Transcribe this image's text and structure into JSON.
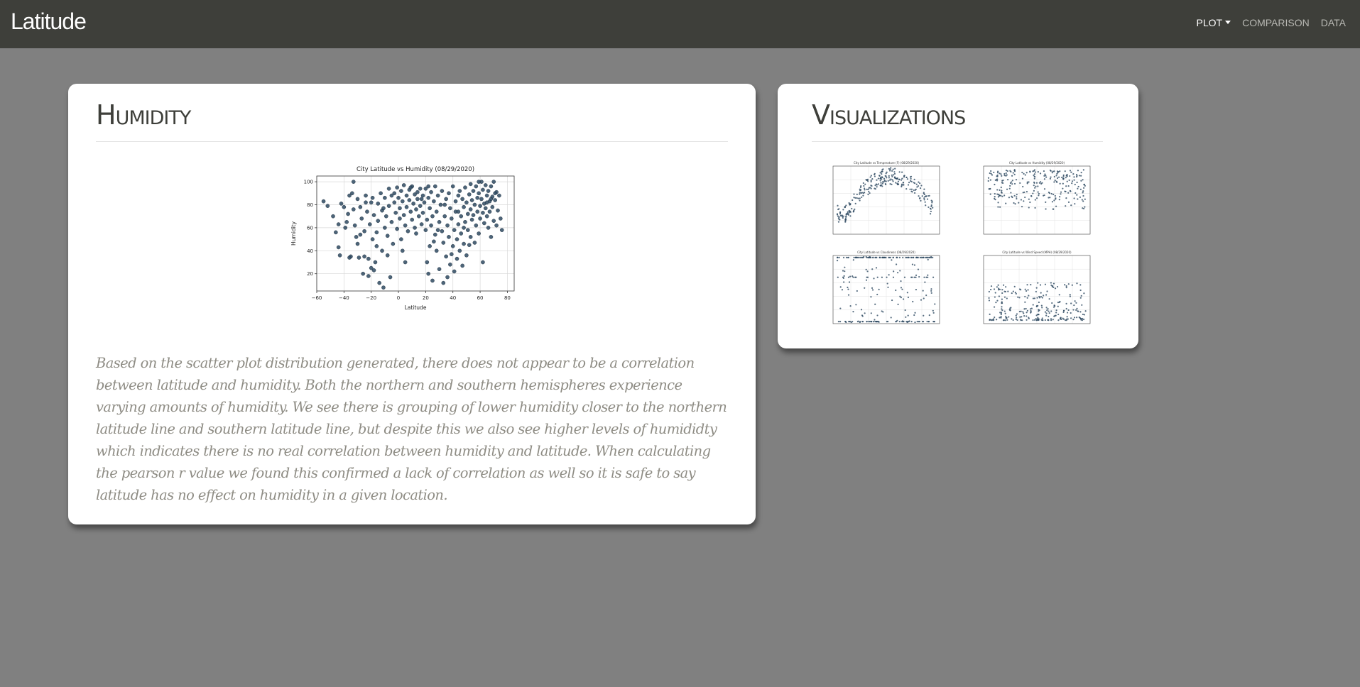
{
  "navbar": {
    "brand": "Latitude",
    "links": [
      {
        "label": "PLOT",
        "dropdown": true,
        "active": true
      },
      {
        "label": "COMPARISON",
        "dropdown": false,
        "active": false
      },
      {
        "label": "DATA",
        "dropdown": false,
        "active": false
      }
    ]
  },
  "colors": {
    "background": "#808080",
    "navbar": "#3e3f3a",
    "card": "#ffffff",
    "heading": "#3e3f3a",
    "body_text": "#8e8c84",
    "marker": "#2e4a62"
  },
  "humidity_card": {
    "title": "Humidity",
    "paragraph": "Based on the scatter plot distribution generated, there does not appear to be a correlation between latitude and humidity. Both the northern and southern hemispheres experience varying amounts of humidity. We see there is grouping of lower humidity closer to the northern latitude line and southern latitude line, but despite this we also see higher levels of humididty which indicates there is no real correlation between humidity and latitude. When calculating the pearson r value we found this confirmed a lack of correlation as well so it is safe to say latitude has no effect on humidity in a given location."
  },
  "visualizations_card": {
    "title": "Visualizations",
    "thumbnails": [
      {
        "name": "temperature",
        "title": "City Latitude vs Temperature (F) (08/29/2020)"
      },
      {
        "name": "humidity",
        "title": "City Latitude vs Humidity (08/29/2020)"
      },
      {
        "name": "cloudiness",
        "title": "City Latitude vs Cloudiness (08/29/2020)"
      },
      {
        "name": "wind-speed",
        "title": "City Latitude vs Wind Speed (MPH) (08/29/2020)"
      }
    ]
  },
  "chart_data": {
    "type": "scatter",
    "title": "City Latitude vs Humidity (08/29/2020)",
    "xlabel": "Latitude",
    "ylabel": "Humidity",
    "xlim": [
      -60,
      85
    ],
    "ylim": [
      5,
      105
    ],
    "xticks": [
      -60,
      -40,
      -20,
      0,
      20,
      40,
      60,
      80
    ],
    "yticks": [
      20,
      40,
      60,
      80,
      100
    ],
    "grid": true,
    "points": [
      [
        -55,
        83
      ],
      [
        -52,
        79
      ],
      [
        -48,
        70
      ],
      [
        -46,
        56
      ],
      [
        -44,
        43
      ],
      [
        -43,
        36
      ],
      [
        -42,
        81
      ],
      [
        -40,
        78
      ],
      [
        -39,
        60
      ],
      [
        -38,
        65
      ],
      [
        -37,
        72
      ],
      [
        -36,
        88
      ],
      [
        -35,
        35
      ],
      [
        -34,
        90
      ],
      [
        -33,
        100
      ],
      [
        -32,
        62
      ],
      [
        -31,
        52
      ],
      [
        -30,
        85
      ],
      [
        -30,
        46
      ],
      [
        -29,
        34
      ],
      [
        -28,
        78
      ],
      [
        -27,
        68
      ],
      [
        -26,
        20
      ],
      [
        -25,
        35
      ],
      [
        -25,
        57
      ],
      [
        -24,
        88
      ],
      [
        -23,
        74
      ],
      [
        -22,
        33
      ],
      [
        -22,
        18
      ],
      [
        -21,
        63
      ],
      [
        -20,
        82
      ],
      [
        -20,
        25
      ],
      [
        -19,
        50
      ],
      [
        -18,
        71
      ],
      [
        -18,
        23
      ],
      [
        -17,
        30
      ],
      [
        -16,
        56
      ],
      [
        -15,
        81
      ],
      [
        -15,
        66
      ],
      [
        -14,
        12
      ],
      [
        -13,
        90
      ],
      [
        -12,
        75
      ],
      [
        -12,
        40
      ],
      [
        -11,
        8
      ],
      [
        -10,
        60
      ],
      [
        -10,
        86
      ],
      [
        -9,
        70
      ],
      [
        -8,
        53
      ],
      [
        -7,
        94
      ],
      [
        -7,
        79
      ],
      [
        -6,
        17
      ],
      [
        -5,
        65
      ],
      [
        -5,
        88
      ],
      [
        -4,
        46
      ],
      [
        -3,
        82
      ],
      [
        -2,
        73
      ],
      [
        -1,
        95
      ],
      [
        -1,
        59
      ],
      [
        0,
        86
      ],
      [
        1,
        77
      ],
      [
        1,
        68
      ],
      [
        2,
        92
      ],
      [
        2,
        50
      ],
      [
        3,
        83
      ],
      [
        4,
        71
      ],
      [
        4,
        97
      ],
      [
        5,
        62
      ],
      [
        6,
        88
      ],
      [
        6,
        78
      ],
      [
        7,
        57
      ],
      [
        8,
        93
      ],
      [
        8,
        84
      ],
      [
        9,
        74
      ],
      [
        10,
        67
      ],
      [
        10,
        96
      ],
      [
        11,
        81
      ],
      [
        12,
        89
      ],
      [
        12,
        60
      ],
      [
        13,
        76
      ],
      [
        14,
        91
      ],
      [
        14,
        85
      ],
      [
        15,
        70
      ],
      [
        16,
        94
      ],
      [
        16,
        79
      ],
      [
        17,
        63
      ],
      [
        18,
        88
      ],
      [
        18,
        73
      ],
      [
        19,
        82
      ],
      [
        20,
        94
      ],
      [
        20,
        58
      ],
      [
        21,
        67
      ],
      [
        21,
        30
      ],
      [
        22,
        86
      ],
      [
        22,
        20
      ],
      [
        23,
        77
      ],
      [
        23,
        44
      ],
      [
        24,
        91
      ],
      [
        24,
        62
      ],
      [
        25,
        70
      ],
      [
        25,
        14
      ],
      [
        26,
        83
      ],
      [
        27,
        54
      ],
      [
        27,
        96
      ],
      [
        28,
        74
      ],
      [
        28,
        40
      ],
      [
        29,
        88
      ],
      [
        30,
        65
      ],
      [
        30,
        24
      ],
      [
        31,
        80
      ],
      [
        32,
        57
      ],
      [
        32,
        92
      ],
      [
        33,
        47
      ],
      [
        33,
        12
      ],
      [
        34,
        70
      ],
      [
        35,
        85
      ],
      [
        35,
        35
      ],
      [
        36,
        62
      ],
      [
        36,
        17
      ],
      [
        37,
        90
      ],
      [
        37,
        52
      ],
      [
        38,
        77
      ],
      [
        38,
        28
      ],
      [
        39,
        68
      ],
      [
        40,
        96
      ],
      [
        40,
        44
      ],
      [
        41,
        58
      ],
      [
        41,
        22
      ],
      [
        42,
        83
      ],
      [
        42,
        74
      ],
      [
        43,
        50
      ],
      [
        43,
        33
      ],
      [
        44,
        88
      ],
      [
        44,
        63
      ],
      [
        45,
        92
      ],
      [
        45,
        40
      ],
      [
        46,
        70
      ],
      [
        46,
        55
      ],
      [
        47,
        85
      ],
      [
        47,
        27
      ],
      [
        48,
        78
      ],
      [
        48,
        46
      ],
      [
        49,
        95
      ],
      [
        49,
        65
      ],
      [
        50,
        82
      ],
      [
        50,
        36
      ],
      [
        51,
        72
      ],
      [
        51,
        58
      ],
      [
        52,
        89
      ],
      [
        52,
        45
      ],
      [
        53,
        76
      ],
      [
        53,
        98
      ],
      [
        54,
        67
      ],
      [
        54,
        84
      ],
      [
        55,
        92
      ],
      [
        55,
        71
      ],
      [
        56,
        80
      ],
      [
        57,
        96
      ],
      [
        57,
        62
      ],
      [
        58,
        86
      ],
      [
        58,
        74
      ],
      [
        59,
        90
      ],
      [
        59,
        55
      ],
      [
        60,
        79
      ],
      [
        60,
        68
      ],
      [
        61,
        100
      ],
      [
        61,
        85
      ],
      [
        62,
        73
      ],
      [
        62,
        93
      ],
      [
        63,
        64
      ],
      [
        63,
        81
      ],
      [
        64,
        97
      ],
      [
        64,
        77
      ],
      [
        65,
        88
      ],
      [
        65,
        70
      ],
      [
        66,
        60
      ],
      [
        66,
        92
      ],
      [
        67,
        83
      ],
      [
        67,
        74
      ],
      [
        68,
        96
      ],
      [
        68,
        52
      ],
      [
        69,
        87
      ],
      [
        69,
        78
      ],
      [
        70,
        100
      ],
      [
        70,
        66
      ],
      [
        71,
        84
      ],
      [
        72,
        91
      ],
      [
        72,
        62
      ],
      [
        73,
        75
      ],
      [
        74,
        88
      ],
      [
        75,
        68
      ],
      [
        -44,
        63
      ],
      [
        -36,
        34
      ],
      [
        -33,
        76
      ],
      [
        -28,
        54
      ],
      [
        -24,
        82
      ],
      [
        -19,
        86
      ],
      [
        -16,
        44
      ],
      [
        -11,
        77
      ],
      [
        -8,
        36
      ],
      [
        -3,
        90
      ],
      [
        3,
        40
      ],
      [
        5,
        30
      ],
      [
        9,
        95
      ],
      [
        13,
        55
      ],
      [
        17,
        85
      ],
      [
        22,
        96
      ],
      [
        26,
        48
      ],
      [
        29,
        58
      ],
      [
        34,
        80
      ],
      [
        39,
        37
      ],
      [
        44,
        74
      ],
      [
        48,
        60
      ],
      [
        53,
        52
      ],
      [
        56,
        47
      ],
      [
        59,
        100
      ],
      [
        62,
        30
      ],
      [
        65,
        82
      ],
      [
        68,
        85
      ],
      [
        71,
        90
      ],
      [
        76,
        58
      ]
    ]
  }
}
